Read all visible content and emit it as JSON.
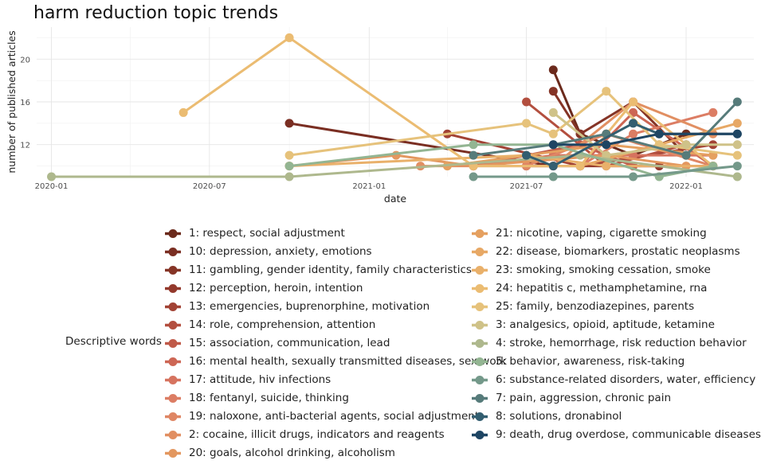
{
  "chart_data": {
    "type": "line",
    "title": "harm reduction topic trends",
    "xlabel": "date",
    "ylabel": "number of published articles",
    "xlim": [
      "2019-12-15",
      "2022-03-20"
    ],
    "ylim": [
      9,
      23
    ],
    "x_ticks": [
      "2020-01-01",
      "2020-07-01",
      "2021-01-01",
      "2021-07-01",
      "2022-01-01"
    ],
    "x_tick_labels": [
      "2020-01",
      "2020-07",
      "2021-01",
      "2021-07",
      "2022-01"
    ],
    "y_ticks": [
      12,
      16,
      20
    ],
    "grid": true,
    "legend_title": "Descriptive words",
    "legend_position": "bottom",
    "series": [
      {
        "name": "1: respect, social adjustment",
        "color": "#6b2a1c",
        "points": [
          [
            "2021-08-01",
            19
          ],
          [
            "2021-09-01",
            13
          ],
          [
            "2021-11-01",
            11
          ],
          [
            "2022-01-01",
            13
          ]
        ]
      },
      {
        "name": "10: depression, anxiety, emotions",
        "color": "#7a2e22",
        "points": [
          [
            "2020-10-01",
            14
          ],
          [
            "2021-08-01",
            10
          ]
        ]
      },
      {
        "name": "11: gambling, gender identity, family characteristics",
        "color": "#853426",
        "points": [
          [
            "2021-08-01",
            17
          ],
          [
            "2021-09-01",
            13
          ],
          [
            "2021-11-01",
            16
          ],
          [
            "2022-01-01",
            11
          ]
        ]
      },
      {
        "name": "12: perception, heroin, intention",
        "color": "#93392c",
        "points": [
          [
            "2021-07-01",
            10
          ],
          [
            "2021-09-01",
            10
          ],
          [
            "2021-12-01",
            10
          ]
        ]
      },
      {
        "name": "13: emergencies, buprenorphine, motivation",
        "color": "#a24234",
        "points": [
          [
            "2021-04-01",
            13
          ],
          [
            "2021-09-01",
            10
          ],
          [
            "2022-02-01",
            12
          ]
        ]
      },
      {
        "name": "14: role, comprehension, attention",
        "color": "#b34f3f",
        "points": [
          [
            "2021-07-01",
            16
          ],
          [
            "2021-10-01",
            10
          ],
          [
            "2022-01-01",
            12
          ]
        ]
      },
      {
        "name": "15: association, communication, lead",
        "color": "#c05a49",
        "points": [
          [
            "2021-05-01",
            10
          ],
          [
            "2021-09-01",
            12
          ],
          [
            "2021-11-01",
            10
          ],
          [
            "2022-02-01",
            10
          ]
        ]
      },
      {
        "name": "16: mental health, sexually transmitted diseases, sex work",
        "color": "#cd6654",
        "points": [
          [
            "2021-09-01",
            10
          ],
          [
            "2021-11-01",
            15
          ],
          [
            "2022-02-01",
            10
          ]
        ]
      },
      {
        "name": "17: attitude, hiv infections",
        "color": "#d6735f",
        "points": [
          [
            "2021-05-01",
            10
          ],
          [
            "2021-08-01",
            11
          ],
          [
            "2021-11-01",
            11
          ],
          [
            "2022-02-01",
            11
          ]
        ]
      },
      {
        "name": "18: fentanyl, suicide, thinking",
        "color": "#dc7d64",
        "points": [
          [
            "2021-09-01",
            10
          ],
          [
            "2021-11-01",
            13
          ],
          [
            "2022-02-01",
            15
          ]
        ]
      },
      {
        "name": "19: naloxone, anti-bacterial agents, social adjustment",
        "color": "#df8664",
        "points": [
          [
            "2021-07-01",
            10
          ],
          [
            "2021-10-01",
            13
          ],
          [
            "2022-02-01",
            10
          ]
        ]
      },
      {
        "name": "2: cocaine, illicit drugs, indicators and reagents",
        "color": "#e18f62",
        "points": [
          [
            "2021-03-01",
            10
          ],
          [
            "2021-08-01",
            10
          ],
          [
            "2021-11-01",
            16
          ],
          [
            "2022-02-01",
            13
          ]
        ]
      },
      {
        "name": "20: goals, alcohol drinking, alcoholism",
        "color": "#e3975f",
        "points": [
          [
            "2020-10-01",
            10
          ],
          [
            "2021-02-01",
            11
          ],
          [
            "2021-05-01",
            10
          ],
          [
            "2021-10-01",
            11
          ],
          [
            "2022-01-01",
            10
          ]
        ]
      },
      {
        "name": "21: nicotine, vaping, cigarette smoking",
        "color": "#e5a060",
        "points": [
          [
            "2021-04-01",
            10
          ],
          [
            "2021-10-01",
            12
          ],
          [
            "2022-02-01",
            11
          ]
        ]
      },
      {
        "name": "22: disease, biomarkers, prostatic neoplasms",
        "color": "#e7a865",
        "points": [
          [
            "2021-09-01",
            10
          ],
          [
            "2021-12-01",
            12
          ],
          [
            "2022-03-01",
            14
          ]
        ]
      },
      {
        "name": "23: smoking, smoking cessation, smoke",
        "color": "#e9b06a",
        "points": [
          [
            "2020-10-01",
            10
          ],
          [
            "2021-07-01",
            11
          ],
          [
            "2021-10-01",
            10
          ],
          [
            "2022-02-01",
            10
          ]
        ]
      },
      {
        "name": "24: hepatitis c, methamphetamine, rna",
        "color": "#ebbc72",
        "points": [
          [
            "2020-06-01",
            15
          ],
          [
            "2020-10-01",
            22
          ],
          [
            "2021-05-01",
            10
          ],
          [
            "2021-09-01",
            10
          ],
          [
            "2021-11-01",
            16
          ],
          [
            "2022-02-01",
            10
          ]
        ]
      },
      {
        "name": "25: family, benzodiazepines, parents",
        "color": "#e6c27b",
        "points": [
          [
            "2020-10-01",
            11
          ],
          [
            "2021-07-01",
            14
          ],
          [
            "2021-08-01",
            13
          ],
          [
            "2021-10-01",
            17
          ],
          [
            "2021-12-01",
            12
          ],
          [
            "2022-03-01",
            11
          ]
        ]
      },
      {
        "name": "3: analgesics, opioid, aptitude, ketamine",
        "color": "#cfc288",
        "points": [
          [
            "2021-08-01",
            15
          ],
          [
            "2021-10-01",
            11
          ],
          [
            "2022-01-01",
            12
          ],
          [
            "2022-03-01",
            12
          ]
        ]
      },
      {
        "name": "4: stroke, hemorrhage, risk reduction behavior",
        "color": "#aeb88d",
        "points": [
          [
            "2020-01-01",
            9
          ],
          [
            "2020-10-01",
            9
          ],
          [
            "2021-09-01",
            11
          ],
          [
            "2022-03-01",
            9
          ]
        ]
      },
      {
        "name": "5: behavior, awareness, risk-taking",
        "color": "#93b592",
        "points": [
          [
            "2020-10-01",
            10
          ],
          [
            "2021-05-01",
            12
          ],
          [
            "2021-08-01",
            12
          ],
          [
            "2021-12-01",
            9
          ],
          [
            "2022-02-01",
            10
          ]
        ]
      },
      {
        "name": "6: substance-related disorders, water, efficiency",
        "color": "#74998a",
        "points": [
          [
            "2021-05-01",
            9
          ],
          [
            "2021-08-01",
            9
          ],
          [
            "2021-11-01",
            9
          ],
          [
            "2022-03-01",
            10
          ]
        ]
      },
      {
        "name": "7: pain, aggression, chronic pain",
        "color": "#567b7a",
        "points": [
          [
            "2021-05-01",
            11
          ],
          [
            "2021-08-01",
            12
          ],
          [
            "2021-10-01",
            13
          ],
          [
            "2022-01-01",
            11
          ],
          [
            "2022-03-01",
            16
          ]
        ]
      },
      {
        "name": "8: solutions, dronabinol",
        "color": "#335e70",
        "points": [
          [
            "2021-07-01",
            11
          ],
          [
            "2021-08-01",
            10
          ],
          [
            "2021-11-01",
            14
          ],
          [
            "2021-12-01",
            13
          ],
          [
            "2022-03-01",
            13
          ]
        ]
      },
      {
        "name": "9: death, drug overdose, communicable diseases",
        "color": "#1e4563",
        "points": [
          [
            "2021-08-01",
            12
          ],
          [
            "2021-10-01",
            12
          ],
          [
            "2021-12-01",
            13
          ],
          [
            "2022-03-01",
            13
          ]
        ]
      }
    ]
  }
}
